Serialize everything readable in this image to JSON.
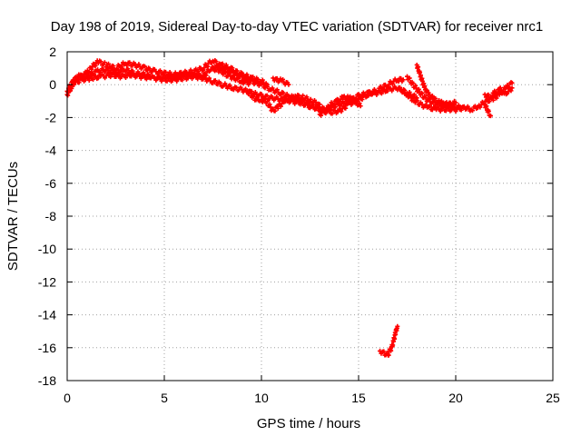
{
  "chart_data": {
    "type": "scatter",
    "title": "Day 198 of 2019, Sidereal Day-to-day VTEC variation (SDTVAR) for receiver nrc1",
    "xlabel": "GPS time / hours",
    "ylabel": "SDTVAR / TECUs",
    "xlim": [
      0,
      25
    ],
    "ylim": [
      -18,
      2
    ],
    "xticks": [
      0,
      5,
      10,
      15,
      20,
      25
    ],
    "yticks": [
      2,
      0,
      -2,
      -4,
      -6,
      -8,
      -10,
      -12,
      -14,
      -16,
      -18
    ],
    "grid": true,
    "marker": "plus",
    "series": [
      {
        "name": "SDTVAR",
        "color": "#ff0000",
        "tracks": [
          [
            [
              0.0,
              -0.6
            ],
            [
              0.2,
              -0.2
            ],
            [
              0.4,
              0.3
            ],
            [
              0.7,
              0.5
            ],
            [
              1.0,
              0.7
            ],
            [
              1.3,
              1.1
            ],
            [
              1.6,
              1.4
            ],
            [
              2.0,
              1.2
            ],
            [
              2.5,
              1.0
            ],
            [
              3.0,
              1.3
            ],
            [
              3.5,
              1.2
            ],
            [
              4.0,
              1.0
            ],
            [
              4.5,
              0.8
            ],
            [
              5.0,
              0.7
            ],
            [
              5.5,
              0.6
            ],
            [
              6.0,
              0.7
            ],
            [
              6.5,
              0.8
            ],
            [
              7.0,
              1.0
            ],
            [
              7.5,
              1.5
            ],
            [
              8.0,
              1.0
            ],
            [
              8.5,
              0.7
            ],
            [
              9.0,
              0.4
            ],
            [
              9.5,
              0.2
            ],
            [
              10.0,
              0.0
            ],
            [
              10.5,
              -0.3
            ],
            [
              11.0,
              -0.5
            ],
            [
              11.5,
              -0.8
            ],
            [
              12.0,
              -0.9
            ],
            [
              12.5,
              -1.2
            ],
            [
              13.0,
              -1.5
            ],
            [
              13.5,
              -1.7
            ],
            [
              14.0,
              -1.6
            ],
            [
              14.5,
              -1.2
            ],
            [
              15.0,
              -0.9
            ],
            [
              15.5,
              -0.6
            ],
            [
              16.0,
              -0.3
            ],
            [
              16.5,
              0.0
            ],
            [
              17.0,
              0.3
            ],
            [
              17.3,
              0.3
            ]
          ],
          [
            [
              0.0,
              -0.4
            ],
            [
              0.3,
              0.2
            ],
            [
              0.6,
              0.5
            ],
            [
              1.0,
              0.5
            ],
            [
              1.5,
              0.8
            ],
            [
              2.0,
              0.9
            ],
            [
              2.5,
              0.8
            ],
            [
              3.0,
              0.9
            ],
            [
              3.5,
              0.7
            ],
            [
              4.0,
              0.6
            ],
            [
              4.5,
              0.4
            ],
            [
              5.0,
              0.3
            ],
            [
              5.5,
              0.3
            ],
            [
              6.0,
              0.4
            ],
            [
              6.5,
              0.5
            ],
            [
              7.0,
              0.4
            ],
            [
              7.5,
              0.2
            ],
            [
              8.0,
              0.0
            ],
            [
              8.5,
              -0.2
            ],
            [
              9.0,
              -0.3
            ],
            [
              9.5,
              -0.5
            ],
            [
              10.0,
              -0.7
            ],
            [
              10.5,
              -0.8
            ],
            [
              11.0,
              -0.9
            ],
            [
              11.5,
              -1.0
            ],
            [
              12.0,
              -1.1
            ],
            [
              12.5,
              -1.3
            ],
            [
              13.0,
              -1.5
            ],
            [
              13.5,
              -1.4
            ],
            [
              14.0,
              -1.2
            ],
            [
              14.5,
              -1.0
            ],
            [
              15.0,
              -0.7
            ],
            [
              15.5,
              -0.5
            ],
            [
              16.0,
              -0.5
            ],
            [
              16.5,
              -0.3
            ],
            [
              17.0,
              -0.2
            ],
            [
              17.5,
              -0.5
            ],
            [
              18.0,
              -0.8
            ]
          ],
          [
            [
              0.3,
              0.1
            ],
            [
              0.8,
              0.3
            ],
            [
              1.2,
              0.4
            ],
            [
              1.8,
              0.5
            ],
            [
              2.3,
              0.6
            ],
            [
              2.8,
              0.5
            ],
            [
              3.3,
              0.6
            ],
            [
              3.8,
              0.5
            ],
            [
              4.3,
              0.4
            ]
          ],
          [
            [
              4.5,
              0.4
            ],
            [
              5.0,
              0.5
            ],
            [
              5.5,
              0.5
            ],
            [
              6.0,
              0.6
            ],
            [
              6.5,
              0.6
            ],
            [
              7.0,
              0.5
            ],
            [
              7.4,
              1.0
            ],
            [
              7.8,
              0.9
            ],
            [
              8.2,
              0.6
            ],
            [
              8.6,
              0.4
            ],
            [
              9.0,
              0.2
            ],
            [
              9.4,
              0.1
            ]
          ],
          [
            [
              7.5,
              1.0
            ],
            [
              8.0,
              1.2
            ],
            [
              8.5,
              0.9
            ],
            [
              9.0,
              0.6
            ],
            [
              9.5,
              0.4
            ],
            [
              10.0,
              0.2
            ],
            [
              10.3,
              0.0
            ]
          ],
          [
            [
              9.3,
              -0.4
            ],
            [
              9.6,
              -0.8
            ],
            [
              9.9,
              -1.0
            ]
          ],
          [
            [
              10.0,
              -0.9
            ],
            [
              10.3,
              -1.1
            ],
            [
              10.6,
              -1.6
            ],
            [
              10.9,
              -1.3
            ],
            [
              11.2,
              -1.0
            ],
            [
              11.5,
              -0.8
            ],
            [
              11.8,
              -0.7
            ],
            [
              12.2,
              -0.8
            ],
            [
              12.6,
              -1.0
            ],
            [
              13.0,
              -1.2
            ]
          ],
          [
            [
              10.6,
              0.4
            ],
            [
              10.8,
              0.3
            ],
            [
              11.1,
              0.2
            ],
            [
              11.4,
              0.0
            ]
          ],
          [
            [
              13.0,
              -1.8
            ],
            [
              13.3,
              -1.6
            ],
            [
              13.6,
              -1.2
            ],
            [
              13.9,
              -1.0
            ],
            [
              14.2,
              -0.8
            ],
            [
              14.5,
              -0.8
            ],
            [
              14.8,
              -1.0
            ],
            [
              15.1,
              -1.3
            ]
          ],
          [
            [
              17.2,
              -0.3
            ],
            [
              17.5,
              -0.6
            ],
            [
              17.8,
              -0.9
            ],
            [
              18.2,
              -1.2
            ],
            [
              18.6,
              -1.4
            ],
            [
              19.0,
              -1.5
            ],
            [
              19.5,
              -1.5
            ],
            [
              20.0,
              -1.5
            ],
            [
              20.5,
              -1.4
            ],
            [
              20.8,
              -1.5
            ],
            [
              21.2,
              -1.3
            ],
            [
              21.6,
              -1.0
            ],
            [
              22.0,
              -0.8
            ],
            [
              22.3,
              -0.5
            ],
            [
              22.6,
              -0.2
            ],
            [
              22.9,
              0.1
            ]
          ],
          [
            [
              17.5,
              0.5
            ],
            [
              17.8,
              0.0
            ],
            [
              18.1,
              -0.4
            ],
            [
              18.4,
              -0.8
            ],
            [
              18.8,
              -1.1
            ],
            [
              19.3,
              -1.2
            ],
            [
              19.8,
              -1.3
            ],
            [
              20.3,
              -1.4
            ]
          ],
          [
            [
              18.0,
              1.2
            ],
            [
              18.2,
              0.5
            ],
            [
              18.4,
              -0.2
            ],
            [
              18.6,
              -0.6
            ],
            [
              18.9,
              -0.9
            ],
            [
              19.2,
              -1.1
            ],
            [
              19.6,
              -1.2
            ],
            [
              20.0,
              -1.1
            ]
          ],
          [
            [
              21.5,
              -1.2
            ],
            [
              21.7,
              -1.7
            ],
            [
              21.8,
              -1.9
            ]
          ],
          [
            [
              21.5,
              -0.6
            ],
            [
              21.8,
              -0.8
            ],
            [
              22.0,
              -0.5
            ],
            [
              22.3,
              -0.3
            ],
            [
              22.5,
              -0.6
            ],
            [
              22.7,
              -0.4
            ],
            [
              22.9,
              -0.2
            ]
          ],
          [
            [
              16.1,
              -16.2
            ],
            [
              16.3,
              -16.3
            ],
            [
              16.5,
              -16.5
            ],
            [
              16.6,
              -16.2
            ],
            [
              16.7,
              -16.0
            ],
            [
              16.8,
              -15.6
            ],
            [
              16.9,
              -15.1
            ],
            [
              17.0,
              -14.7
            ]
          ]
        ]
      }
    ]
  }
}
